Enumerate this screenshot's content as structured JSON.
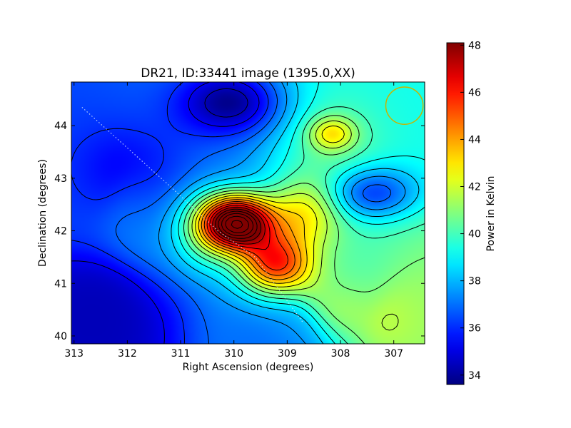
{
  "chart_data": {
    "type": "heatmap",
    "title": "DR21, ID:33441 image (1395.0,XX)",
    "xlabel": "Right Ascension (degrees)",
    "ylabel": "Declination (degrees)",
    "colorbar_label": "Power in Kelvin",
    "colormap": "jet",
    "xlim": [
      313.05,
      306.42
    ],
    "ylim": [
      39.85,
      44.83
    ],
    "clim": [
      33.6,
      48.1
    ],
    "x_ticks": [
      {
        "value": 313,
        "label": "313"
      },
      {
        "value": 312,
        "label": "312"
      },
      {
        "value": 311,
        "label": "311"
      },
      {
        "value": 310,
        "label": "310"
      },
      {
        "value": 309,
        "label": "309"
      },
      {
        "value": 308,
        "label": "308"
      },
      {
        "value": 307,
        "label": "307"
      }
    ],
    "y_ticks": [
      {
        "value": 40,
        "label": "40"
      },
      {
        "value": 41,
        "label": "41"
      },
      {
        "value": 42,
        "label": "42"
      },
      {
        "value": 43,
        "label": "43"
      },
      {
        "value": 44,
        "label": "44"
      }
    ],
    "colorbar_ticks": [
      {
        "value": 34,
        "label": "34"
      },
      {
        "value": 36,
        "label": "36"
      },
      {
        "value": 38,
        "label": "38"
      },
      {
        "value": 40,
        "label": "40"
      },
      {
        "value": 42,
        "label": "42"
      },
      {
        "value": 44,
        "label": "44"
      },
      {
        "value": 46,
        "label": "46"
      },
      {
        "value": 48,
        "label": "48"
      }
    ],
    "grid": false,
    "field": {
      "background": [
        {
          "ra": 312.6,
          "dec": 40.4,
          "value": 34.4
        },
        {
          "ra": 313.0,
          "dec": 43.0,
          "value": 36.3
        },
        {
          "ra": 311.5,
          "dec": 42.3,
          "value": 37.3
        },
        {
          "ra": 306.6,
          "dec": 40.3,
          "value": 41.2
        },
        {
          "ra": 306.6,
          "dec": 44.6,
          "value": 39.3
        },
        {
          "ra": 309.0,
          "dec": 40.0,
          "value": 36.8
        },
        {
          "ra": 308.0,
          "dec": 40.9,
          "value": 40.2
        }
      ],
      "components": [
        {
          "ra": 309.95,
          "dec": 42.15,
          "amplitude": 12.4,
          "sigma_ra": 0.46,
          "sigma_dec": 0.36
        },
        {
          "ra": 309.25,
          "dec": 41.35,
          "amplitude": 7.0,
          "sigma_ra": 0.48,
          "sigma_dec": 0.42
        },
        {
          "ra": 308.7,
          "dec": 42.35,
          "amplitude": 3.2,
          "sigma_ra": 0.5,
          "sigma_dec": 0.45
        },
        {
          "ra": 310.55,
          "dec": 41.95,
          "amplitude": 2.5,
          "sigma_ra": 0.45,
          "sigma_dec": 0.6
        },
        {
          "ra": 310.0,
          "dec": 44.45,
          "amplitude": -3.8,
          "sigma_ra": 0.7,
          "sigma_dec": 0.45
        },
        {
          "ra": 307.4,
          "dec": 42.7,
          "amplitude": -3.6,
          "sigma_ra": 0.62,
          "sigma_dec": 0.36
        },
        {
          "ra": 308.15,
          "dec": 43.85,
          "amplitude": 2.8,
          "sigma_ra": 0.3,
          "sigma_dec": 0.22
        },
        {
          "ra": 308.2,
          "dec": 43.6,
          "amplitude": 1.2,
          "sigma_ra": 0.7,
          "sigma_dec": 0.7
        },
        {
          "ra": 311.7,
          "dec": 43.2,
          "amplitude": -1.3,
          "sigma_ra": 0.8,
          "sigma_dec": 0.6
        },
        {
          "ra": 308.0,
          "dec": 40.3,
          "amplitude": 1.2,
          "sigma_ra": 0.8,
          "sigma_dec": 0.5
        }
      ],
      "contour_interval": 0.8
    },
    "beam_marker": {
      "ra": 306.8,
      "dec": 44.38,
      "color": "#c8b400"
    },
    "trace_line": {
      "points": [
        {
          "ra": 312.85,
          "dec": 44.35
        },
        {
          "ra": 311.2,
          "dec": 42.85
        },
        {
          "ra": 310.3,
          "dec": 42.0
        },
        {
          "ra": 309.6,
          "dec": 41.5
        },
        {
          "ra": 308.7,
          "dec": 40.25
        }
      ],
      "color": "#d8e8ff"
    }
  }
}
